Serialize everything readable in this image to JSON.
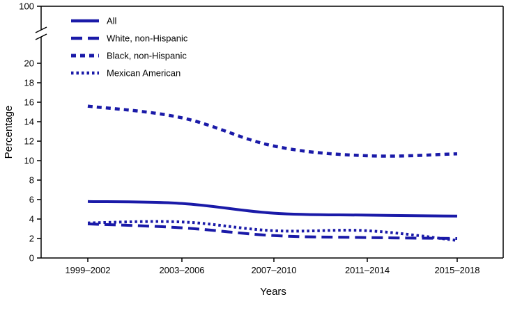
{
  "chart_data": {
    "type": "line",
    "title": "",
    "xlabel": "Years",
    "ylabel": "Percentage",
    "categories": [
      "1999–2002",
      "2003–2006",
      "2007–2010",
      "2011–2014",
      "2015–2018"
    ],
    "ylim": [
      0,
      20
    ],
    "y_break_top_value": 100,
    "y_ticks": [
      0,
      2,
      4,
      6,
      8,
      10,
      12,
      14,
      16,
      18,
      20
    ],
    "legend_position": "top-left",
    "color": "#1a1aa8",
    "series": [
      {
        "name": "All",
        "style": "solid",
        "values": [
          5.8,
          5.6,
          4.6,
          4.4,
          4.3
        ]
      },
      {
        "name": "White, non-Hispanic",
        "style": "long-dash",
        "values": [
          3.5,
          3.1,
          2.3,
          2.1,
          2.0
        ]
      },
      {
        "name": "Black, non-Hispanic",
        "style": "short-dash",
        "values": [
          15.6,
          14.4,
          11.5,
          10.5,
          10.7
        ]
      },
      {
        "name": "Mexican American",
        "style": "dotted",
        "values": [
          3.6,
          3.7,
          2.8,
          2.8,
          1.8
        ]
      }
    ]
  }
}
